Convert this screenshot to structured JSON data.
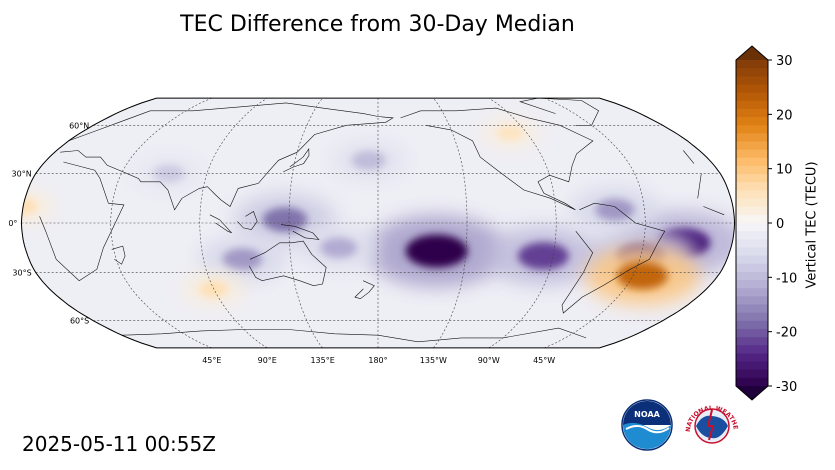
{
  "map": {
    "title": "TEC Difference from 30-Day Median",
    "projection": "Robinson, central meridian 180°",
    "lat_labels": [
      {
        "text": "60°N",
        "lat": 60
      },
      {
        "text": "30°N",
        "lat": 30
      },
      {
        "text": "0°",
        "lat": 0
      },
      {
        "text": "30°S",
        "lat": -30
      },
      {
        "text": "60°S",
        "lat": -60
      }
    ],
    "lon_labels": [
      {
        "text": "45°E",
        "lon": 45
      },
      {
        "text": "90°E",
        "lon": 90
      },
      {
        "text": "135°E",
        "lon": 135
      },
      {
        "text": "180°",
        "lon": 180
      },
      {
        "text": "135°W",
        "lon": -135
      },
      {
        "text": "90°W",
        "lon": -90
      },
      {
        "text": "45°W",
        "lon": -45
      }
    ],
    "anomalies": [
      {
        "lon": -150,
        "lat": -17,
        "value": -30
      },
      {
        "lon": -95,
        "lat": -20,
        "value": -22
      },
      {
        "lon": -25,
        "lat": -12,
        "value": -25
      },
      {
        "lon": -45,
        "lat": -20,
        "value": -20
      },
      {
        "lon": -40,
        "lat": -32,
        "value": 22
      },
      {
        "lon": 133,
        "lat": 2,
        "value": -18
      },
      {
        "lon": 110,
        "lat": -22,
        "value": -14
      },
      {
        "lon": 160,
        "lat": -15,
        "value": -12
      },
      {
        "lon": -60,
        "lat": 8,
        "value": -14
      },
      {
        "lon": 175,
        "lat": 38,
        "value": -10
      },
      {
        "lon": 70,
        "lat": 30,
        "value": -8
      },
      {
        "lon": 90,
        "lat": -40,
        "value": 6
      },
      {
        "lon": 0,
        "lat": 10,
        "value": 6
      },
      {
        "lon": -100,
        "lat": 55,
        "value": 5
      }
    ],
    "timestamp": "2025-05-11 00:55Z"
  },
  "colorbar": {
    "label": "Vertical TEC (TECU)",
    "range": [
      -30,
      30
    ],
    "ticks": [
      "30",
      "20",
      "10",
      "0",
      "-10",
      "-20",
      "-30"
    ],
    "color_stops": [
      "#2d004b",
      "#542788",
      "#8073ac",
      "#b2abd2",
      "#d8daeb",
      "#f7f7f7",
      "#fee0b6",
      "#fdb863",
      "#e08214",
      "#b35806",
      "#7f3b08"
    ]
  },
  "logos": {
    "noaa_text": "NOAA",
    "nws_text": "NATIONAL WEATHER SERVICE"
  }
}
